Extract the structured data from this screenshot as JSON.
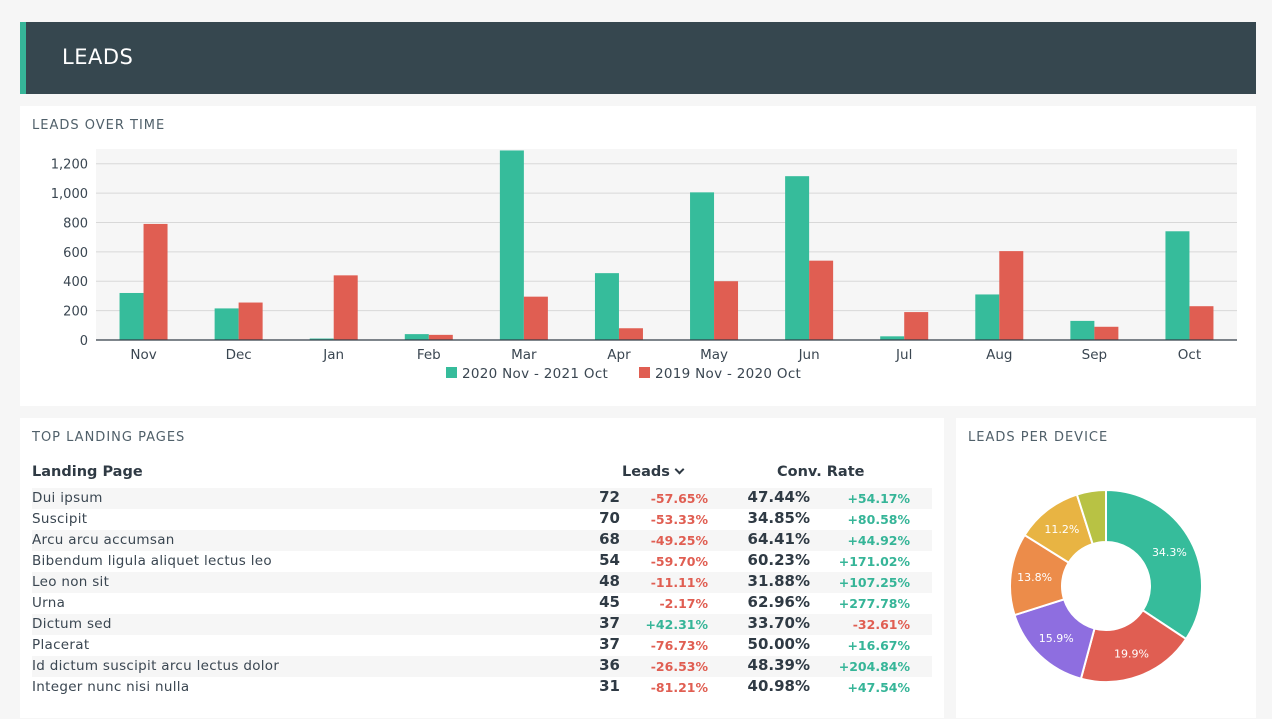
{
  "header": {
    "title": "LEADS"
  },
  "leads_over_time": {
    "title": "LEADS OVER TIME",
    "colors": {
      "current": "#36bc9b",
      "previous": "#e05e52"
    },
    "chart_data": {
      "type": "bar",
      "categories": [
        "Nov",
        "Dec",
        "Jan",
        "Feb",
        "Mar",
        "Apr",
        "May",
        "Jun",
        "Jul",
        "Aug",
        "Sep",
        "Oct"
      ],
      "series": [
        {
          "name": "2020 Nov - 2021 Oct",
          "values": [
            320,
            215,
            10,
            40,
            1290,
            455,
            1005,
            1115,
            25,
            310,
            130,
            740
          ]
        },
        {
          "name": "2019 Nov - 2020 Oct",
          "values": [
            790,
            255,
            440,
            35,
            295,
            80,
            400,
            540,
            190,
            605,
            90,
            230
          ]
        }
      ],
      "yticks": [
        "0",
        "200",
        "400",
        "600",
        "800",
        "1,000",
        "1,200"
      ],
      "ylim": [
        0,
        1300
      ],
      "grid": true,
      "legend": "bottom"
    }
  },
  "top_landing_pages": {
    "title": "TOP LANDING PAGES",
    "columns": {
      "page": "Landing Page",
      "leads": "Leads",
      "conv": "Conv. Rate"
    },
    "rows": [
      {
        "page": "Dui ipsum",
        "leads": "72",
        "leads_delta": "-57.65%",
        "conv": "47.44%",
        "conv_delta": "+54.17%"
      },
      {
        "page": "Suscipit",
        "leads": "70",
        "leads_delta": "-53.33%",
        "conv": "34.85%",
        "conv_delta": "+80.58%"
      },
      {
        "page": "Arcu arcu accumsan",
        "leads": "68",
        "leads_delta": "-49.25%",
        "conv": "64.41%",
        "conv_delta": "+44.92%"
      },
      {
        "page": "Bibendum ligula aliquet lectus leo",
        "leads": "54",
        "leads_delta": "-59.70%",
        "conv": "60.23%",
        "conv_delta": "+171.02%"
      },
      {
        "page": "Leo non sit",
        "leads": "48",
        "leads_delta": "-11.11%",
        "conv": "31.88%",
        "conv_delta": "+107.25%"
      },
      {
        "page": "Urna",
        "leads": "45",
        "leads_delta": "-2.17%",
        "conv": "62.96%",
        "conv_delta": "+277.78%"
      },
      {
        "page": "Dictum sed",
        "leads": "37",
        "leads_delta": "+42.31%",
        "conv": "33.70%",
        "conv_delta": "-32.61%"
      },
      {
        "page": "Placerat",
        "leads": "37",
        "leads_delta": "-76.73%",
        "conv": "50.00%",
        "conv_delta": "+16.67%"
      },
      {
        "page": "Id dictum suscipit arcu lectus dolor",
        "leads": "36",
        "leads_delta": "-26.53%",
        "conv": "48.39%",
        "conv_delta": "+204.84%"
      },
      {
        "page": "Integer nunc nisi nulla",
        "leads": "31",
        "leads_delta": "-81.21%",
        "conv": "40.98%",
        "conv_delta": "+47.54%"
      }
    ]
  },
  "leads_per_device": {
    "title": "LEADS PER DEVICE",
    "chart_data": {
      "type": "pie",
      "slices": [
        {
          "label": "34.3%",
          "value": 34.3,
          "color": "#36bc9b"
        },
        {
          "label": "19.9%",
          "value": 19.9,
          "color": "#e05e52"
        },
        {
          "label": "15.9%",
          "value": 15.9,
          "color": "#8e6ee0"
        },
        {
          "label": "13.8%",
          "value": 13.8,
          "color": "#ec8c4a"
        },
        {
          "label": "11.2%",
          "value": 11.2,
          "color": "#e8b443"
        },
        {
          "label": "",
          "value": 4.9,
          "color": "#b8c244"
        }
      ]
    }
  }
}
